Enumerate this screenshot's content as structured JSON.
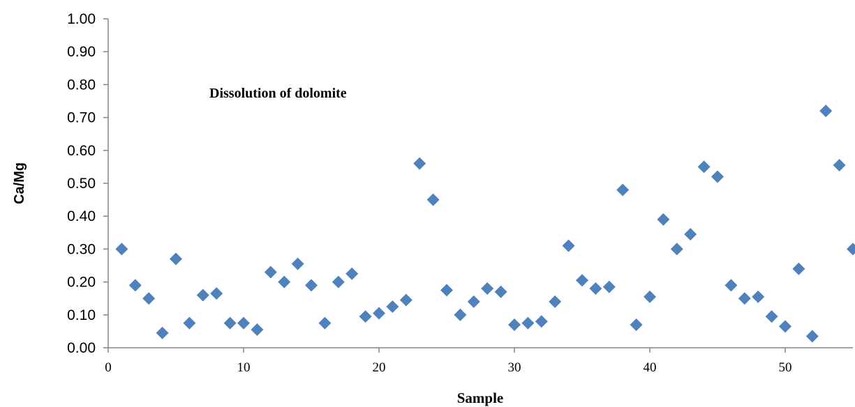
{
  "chart_data": {
    "type": "scatter",
    "xlabel": "Sample",
    "ylabel": "Ca/Mg",
    "annotation": "Dissolution of dolomite",
    "xlim": [
      0,
      55
    ],
    "ylim": [
      0,
      1
    ],
    "xticks": [
      "0",
      "10",
      "20",
      "30",
      "40",
      "50"
    ],
    "yticks": [
      "0.00",
      "0.10",
      "0.20",
      "0.30",
      "0.40",
      "0.50",
      "0.60",
      "0.70",
      "0.80",
      "0.90",
      "1.00"
    ],
    "grid": false,
    "marker": "diamond",
    "color": "#4f81bd",
    "x": [
      1,
      2,
      3,
      4,
      5,
      6,
      7,
      8,
      9,
      10,
      11,
      12,
      13,
      14,
      15,
      16,
      17,
      18,
      19,
      20,
      21,
      22,
      23,
      24,
      25,
      26,
      27,
      28,
      29,
      30,
      31,
      32,
      33,
      34,
      35,
      36,
      37,
      38,
      39,
      40,
      41,
      42,
      43,
      44,
      45,
      46,
      47,
      48,
      49,
      50,
      51,
      52,
      53,
      54,
      55
    ],
    "y": [
      0.3,
      0.19,
      0.15,
      0.045,
      0.27,
      0.075,
      0.16,
      0.165,
      0.075,
      0.075,
      0.055,
      0.23,
      0.2,
      0.255,
      0.19,
      0.075,
      0.2,
      0.225,
      0.095,
      0.105,
      0.125,
      0.145,
      0.56,
      0.45,
      0.175,
      0.1,
      0.14,
      0.18,
      0.17,
      0.07,
      0.075,
      0.08,
      0.14,
      0.31,
      0.205,
      0.18,
      0.185,
      0.48,
      0.07,
      0.155,
      0.39,
      0.3,
      0.345,
      0.55,
      0.52,
      0.19,
      0.15,
      0.155,
      0.095,
      0.065,
      0.24,
      0.035,
      0.72,
      0.555,
      0.3
    ]
  }
}
